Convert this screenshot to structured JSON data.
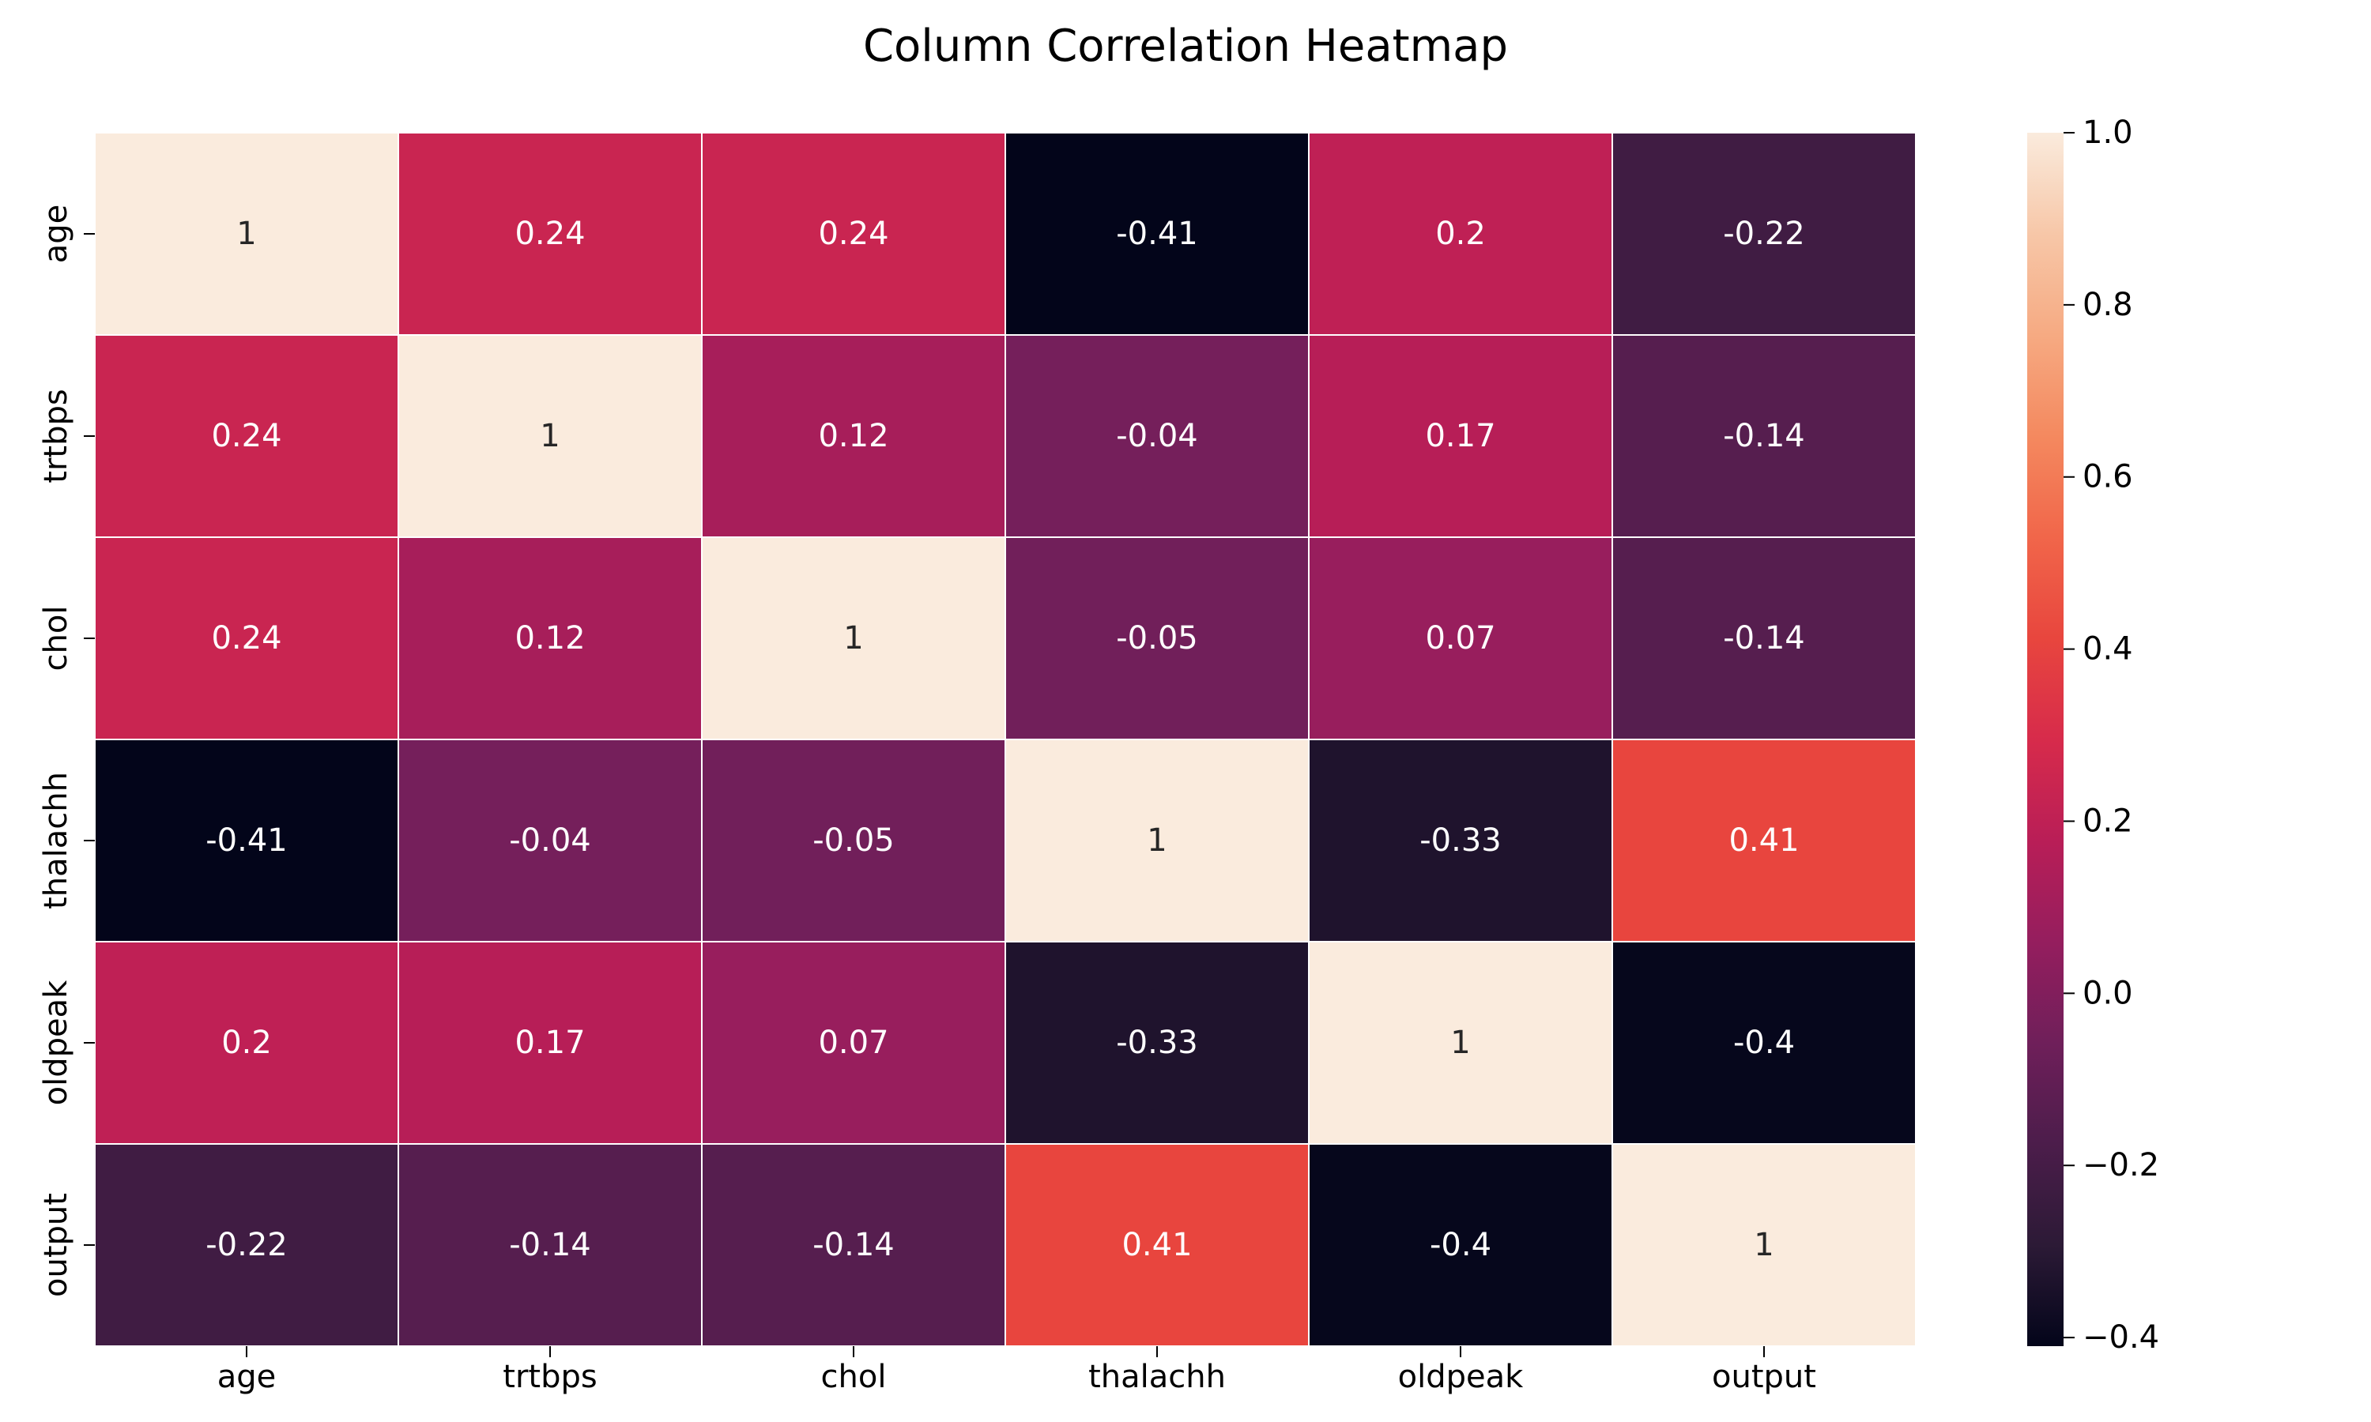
{
  "chart_data": {
    "type": "heatmap",
    "title": "Column Correlation Heatmap",
    "xlabel": "",
    "ylabel": "",
    "x_categories": [
      "age",
      "trtbps",
      "chol",
      "thalachh",
      "oldpeak",
      "output"
    ],
    "y_categories": [
      "age",
      "trtbps",
      "chol",
      "thalachh",
      "oldpeak",
      "output"
    ],
    "values": [
      [
        1,
        0.24,
        0.24,
        -0.41,
        0.2,
        -0.22
      ],
      [
        0.24,
        1,
        0.12,
        -0.04,
        0.17,
        -0.14
      ],
      [
        0.24,
        0.12,
        1,
        -0.05,
        0.07,
        -0.14
      ],
      [
        -0.41,
        -0.04,
        -0.05,
        1,
        -0.33,
        0.41
      ],
      [
        0.2,
        0.17,
        0.07,
        -0.33,
        1,
        -0.4
      ],
      [
        -0.22,
        -0.14,
        -0.14,
        0.41,
        -0.4,
        1
      ]
    ],
    "annotations": [
      [
        "1",
        "0.24",
        "0.24",
        "-0.41",
        "0.2",
        "-0.22"
      ],
      [
        "0.24",
        "1",
        "0.12",
        "-0.04",
        "0.17",
        "-0.14"
      ],
      [
        "0.24",
        "0.12",
        "1",
        "-0.05",
        "0.07",
        "-0.14"
      ],
      [
        "-0.41",
        "-0.04",
        "-0.05",
        "1",
        "-0.33",
        "0.41"
      ],
      [
        "0.2",
        "0.17",
        "0.07",
        "-0.33",
        "1",
        "-0.4"
      ],
      [
        "-0.22",
        "-0.14",
        "-0.14",
        "0.41",
        "-0.4",
        "1"
      ]
    ],
    "colorbar": {
      "vmin": -0.41,
      "vmax": 1.0,
      "ticks": [
        1.0,
        0.8,
        0.6,
        0.4,
        0.2,
        0.0,
        -0.2,
        -0.4
      ],
      "tick_labels": [
        "1.0",
        "0.8",
        "0.6",
        "0.4",
        "0.2",
        "0.0",
        "−0.2",
        "−0.4"
      ],
      "colormap": "rocket",
      "colormap_stops": [
        "#03051a",
        "#2c1a36",
        "#4c1d4b",
        "#6f1f5a",
        "#951e5e",
        "#b91e57",
        "#d72b4b",
        "#e8463e",
        "#f1664a",
        "#f4895f",
        "#f6aa82",
        "#f7c7a8",
        "#faebdd"
      ]
    },
    "grid": false,
    "legend": "colorbar-right"
  }
}
